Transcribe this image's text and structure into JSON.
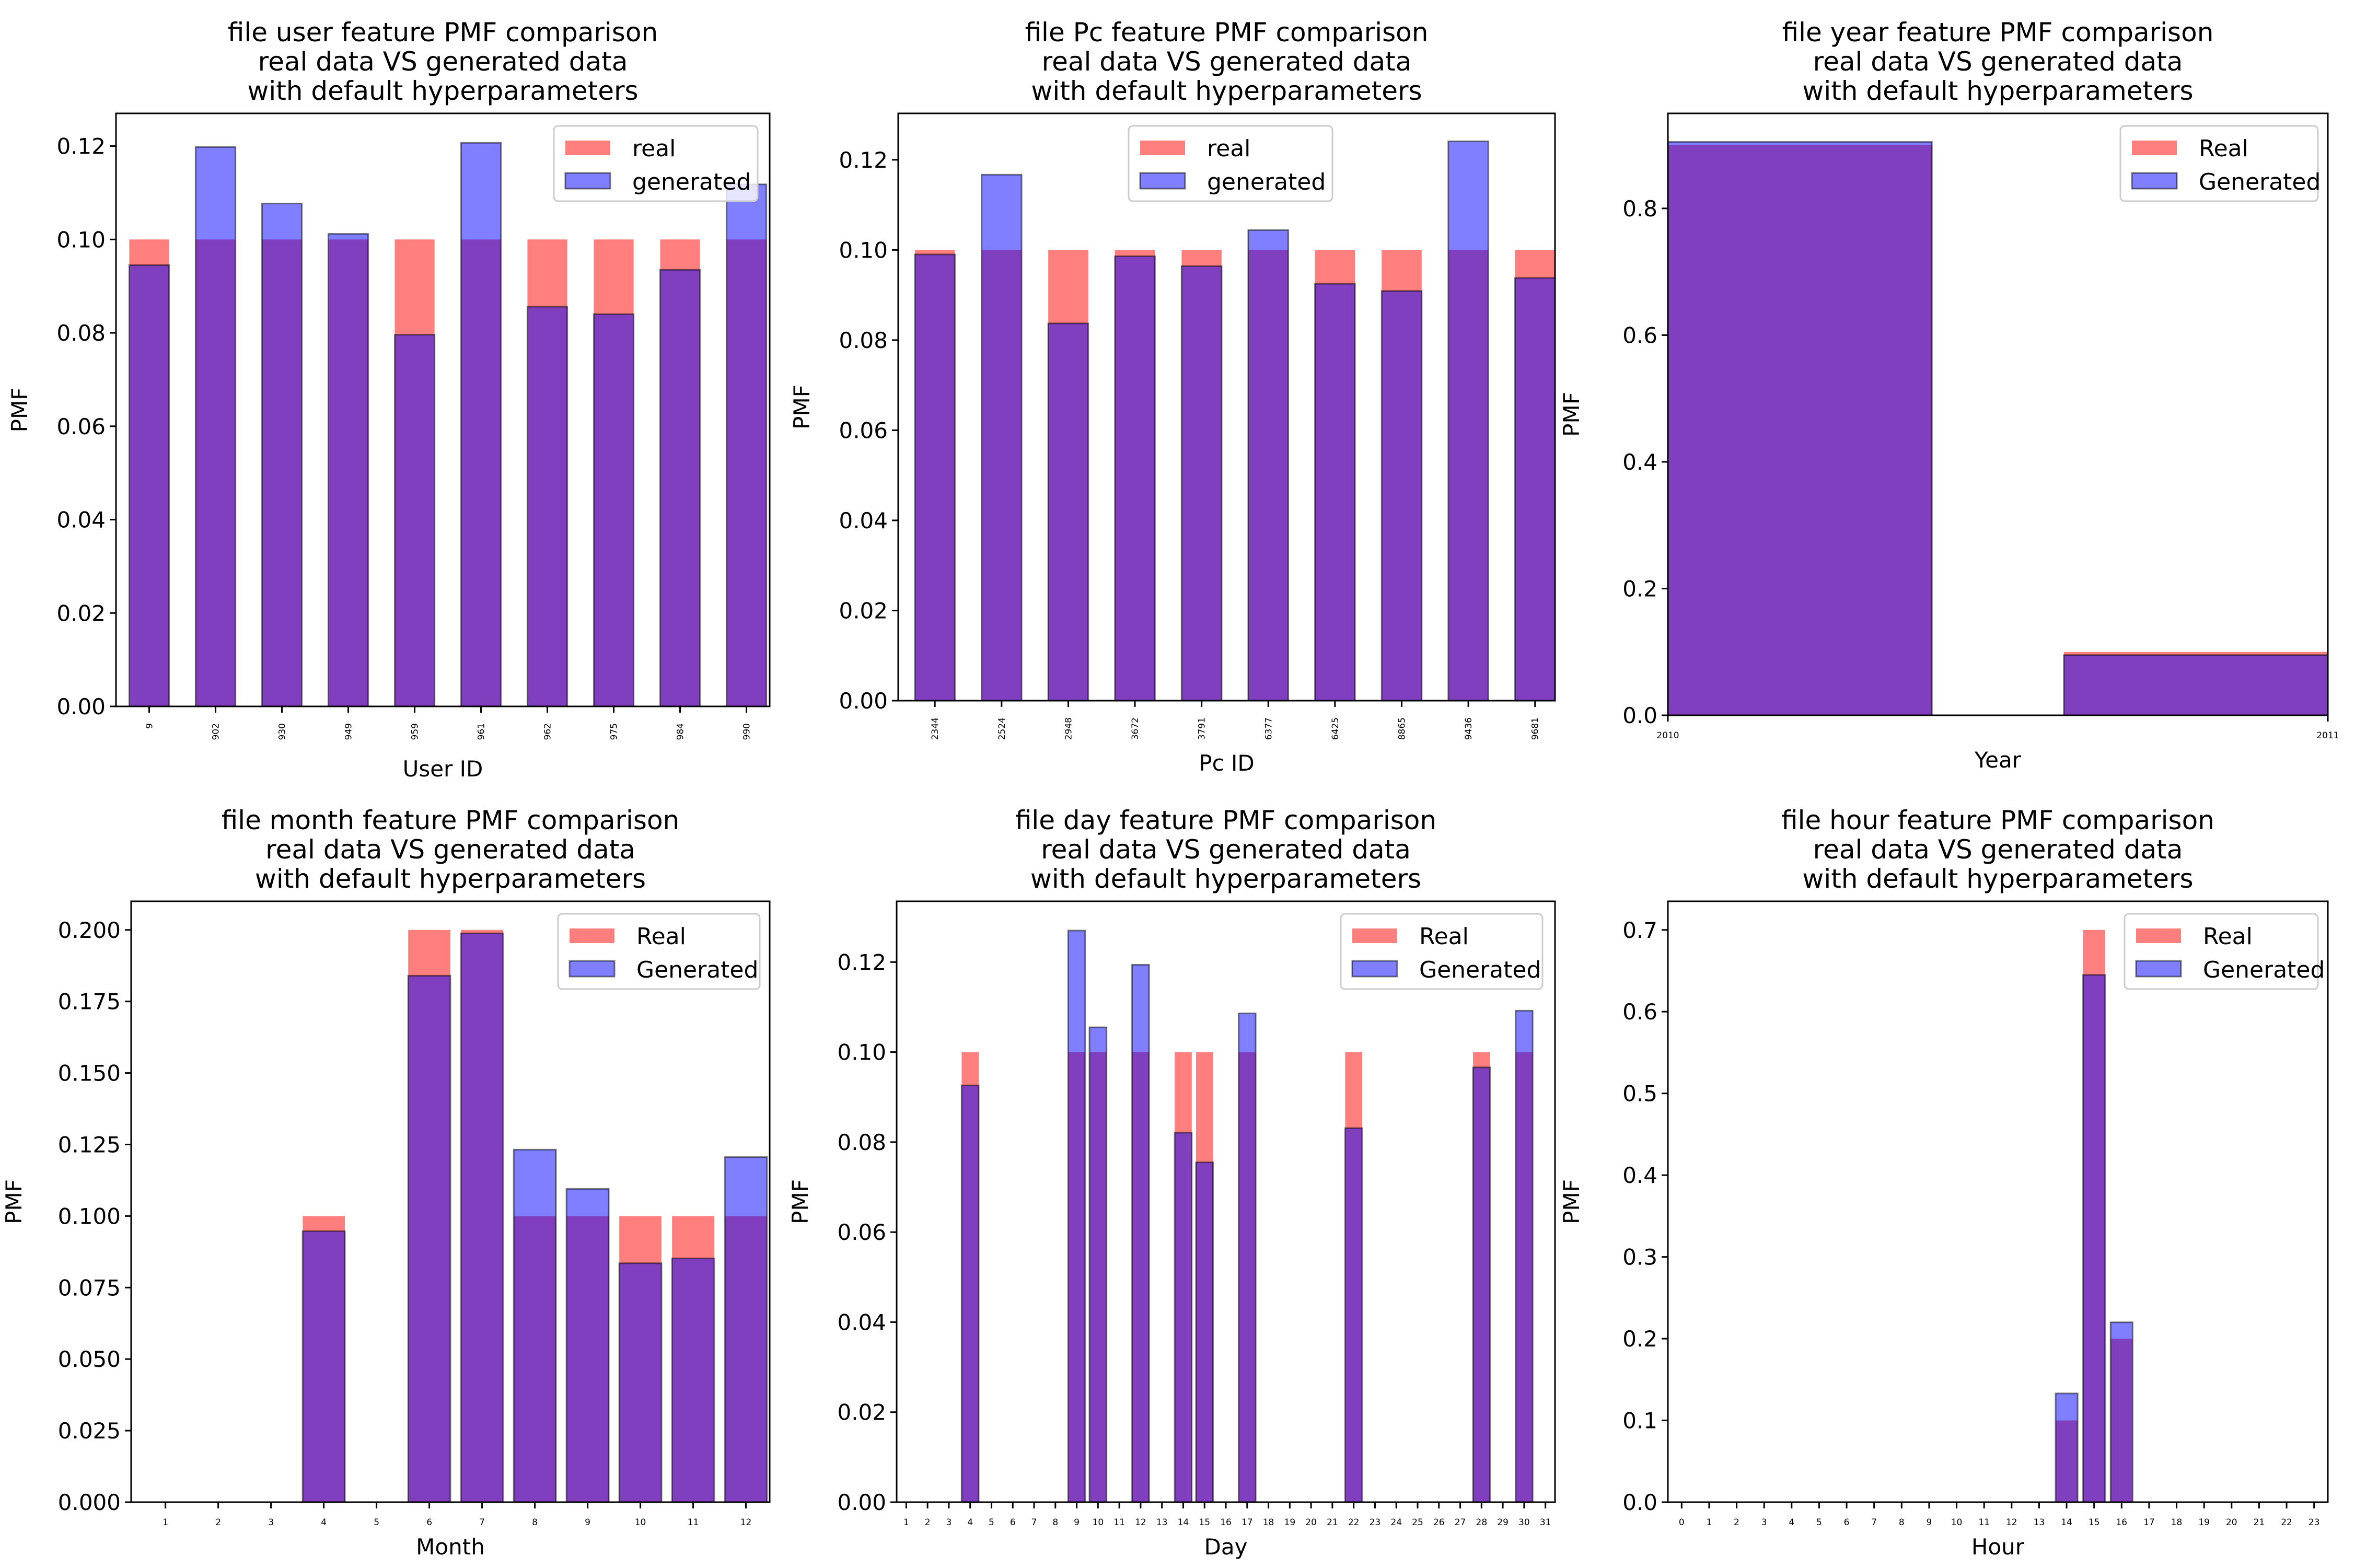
{
  "figure": {
    "background": "#ffffff",
    "colors": {
      "real": "#ff0000",
      "generated": "#0000ff",
      "overlap": "#803ebf",
      "alpha": 0.5
    }
  },
  "chart_data": [
    {
      "id": "user",
      "type": "bar",
      "title": [
        "file user feature PMF comparison",
        "real data VS generated data",
        "with default hyperparameters"
      ],
      "xlabel": "User ID",
      "ylabel": "PMF",
      "categories": [
        "9",
        "902",
        "930",
        "949",
        "959",
        "961",
        "962",
        "975",
        "984",
        "990"
      ],
      "xtick_rotation": "vertical",
      "ylim": [
        0,
        0.127
      ],
      "yticks": [
        0.0,
        0.02,
        0.04,
        0.06,
        0.08,
        0.1,
        0.12
      ],
      "ytick_labels": [
        "0.00",
        "0.02",
        "0.04",
        "0.06",
        "0.08",
        "0.10",
        "0.12"
      ],
      "legend": {
        "labels": [
          "real",
          "generated"
        ],
        "placement": "top-right"
      },
      "series": [
        {
          "name": "real",
          "values": [
            0.1,
            0.1,
            0.1,
            0.1,
            0.1,
            0.1,
            0.1,
            0.1,
            0.1,
            0.1
          ]
        },
        {
          "name": "generated",
          "values": [
            0.0945,
            0.1198,
            0.1077,
            0.1012,
            0.0796,
            0.1207,
            0.0856,
            0.084,
            0.0935,
            0.1118
          ]
        }
      ],
      "grid": false
    },
    {
      "id": "pc",
      "type": "bar",
      "title": [
        "file Pc feature PMF comparison",
        "real data VS generated data",
        "with default hyperparameters"
      ],
      "xlabel": "Pc ID",
      "ylabel": "PMF",
      "categories": [
        "2344",
        "2524",
        "2948",
        "3672",
        "3791",
        "6377",
        "6425",
        "8865",
        "9436",
        "9681"
      ],
      "xtick_rotation": "vertical",
      "ylim": [
        0,
        0.1303
      ],
      "yticks": [
        0.0,
        0.02,
        0.04,
        0.06,
        0.08,
        0.1,
        0.12
      ],
      "ytick_labels": [
        "0.00",
        "0.02",
        "0.04",
        "0.06",
        "0.08",
        "0.10",
        "0.12"
      ],
      "legend": {
        "labels": [
          "real",
          "generated"
        ],
        "placement": "top-center"
      },
      "series": [
        {
          "name": "real",
          "values": [
            0.1,
            0.1,
            0.1,
            0.1,
            0.1,
            0.1,
            0.1,
            0.1,
            0.1,
            0.1
          ]
        },
        {
          "name": "generated",
          "values": [
            0.099,
            0.1167,
            0.0837,
            0.0986,
            0.0964,
            0.1044,
            0.0925,
            0.0909,
            0.1241,
            0.0938
          ]
        }
      ],
      "grid": false
    },
    {
      "id": "year",
      "type": "bar",
      "title": [
        "file year feature PMF comparison",
        "real data VS generated data",
        "with default hyperparameters"
      ],
      "xlabel": "Year",
      "ylabel": "PMF",
      "categories": [
        "2010",
        "2011"
      ],
      "xtick_rotation": "horizontal",
      "ylim": [
        0,
        0.95
      ],
      "yticks": [
        0.0,
        0.2,
        0.4,
        0.6,
        0.8
      ],
      "ytick_labels": [
        "0.0",
        "0.2",
        "0.4",
        "0.6",
        "0.8"
      ],
      "legend": {
        "labels": [
          "Real",
          "Generated"
        ],
        "placement": "top-right"
      },
      "series": [
        {
          "name": "Real",
          "values": [
            0.9,
            0.1
          ]
        },
        {
          "name": "Generated",
          "values": [
            0.905,
            0.095
          ]
        }
      ],
      "grid": false
    },
    {
      "id": "month",
      "type": "bar",
      "title": [
        "file month feature PMF comparison",
        "real data VS generated data",
        "with default hyperparameters"
      ],
      "xlabel": "Month",
      "ylabel": "PMF",
      "categories": [
        "1",
        "2",
        "3",
        "4",
        "5",
        "6",
        "7",
        "8",
        "9",
        "10",
        "11",
        "12"
      ],
      "xtick_rotation": "horizontal",
      "ylim": [
        0,
        0.21
      ],
      "yticks": [
        0.0,
        0.025,
        0.05,
        0.075,
        0.1,
        0.125,
        0.15,
        0.175,
        0.2
      ],
      "ytick_labels": [
        "0.000",
        "0.025",
        "0.050",
        "0.075",
        "0.100",
        "0.125",
        "0.150",
        "0.175",
        "0.200"
      ],
      "legend": {
        "labels": [
          "Real",
          "Generated"
        ],
        "placement": "top-right"
      },
      "series": [
        {
          "name": "Real",
          "values": [
            0,
            0,
            0,
            0.1,
            0,
            0.2,
            0.2,
            0.1,
            0.1,
            0.1,
            0.1,
            0.1
          ]
        },
        {
          "name": "Generated",
          "values": [
            0,
            0,
            0,
            0.0947,
            0,
            0.184,
            0.1988,
            0.1232,
            0.1095,
            0.0835,
            0.0852,
            0.1206
          ]
        }
      ],
      "grid": false
    },
    {
      "id": "day",
      "type": "bar",
      "title": [
        "file day feature PMF comparison",
        "real data VS generated data",
        "with default hyperparameters"
      ],
      "xlabel": "Day",
      "ylabel": "PMF",
      "categories": [
        "1",
        "2",
        "3",
        "4",
        "5",
        "6",
        "7",
        "8",
        "9",
        "10",
        "11",
        "12",
        "13",
        "14",
        "15",
        "16",
        "17",
        "18",
        "19",
        "20",
        "21",
        "22",
        "23",
        "24",
        "25",
        "26",
        "27",
        "28",
        "29",
        "30",
        "31"
      ],
      "xtick_rotation": "horizontal",
      "ylim": [
        0,
        0.1335
      ],
      "yticks": [
        0.0,
        0.02,
        0.04,
        0.06,
        0.08,
        0.1,
        0.12
      ],
      "ytick_labels": [
        "0.00",
        "0.02",
        "0.04",
        "0.06",
        "0.08",
        "0.10",
        "0.12"
      ],
      "legend": {
        "labels": [
          "Real",
          "Generated"
        ],
        "placement": "top-right"
      },
      "series": [
        {
          "name": "Real",
          "values": [
            0,
            0,
            0,
            0.1,
            0,
            0,
            0,
            0,
            0.1,
            0.1,
            0,
            0.1,
            0,
            0.1,
            0.1,
            0,
            0.1,
            0,
            0,
            0,
            0,
            0.1,
            0,
            0,
            0,
            0,
            0,
            0.1,
            0,
            0.1,
            0
          ]
        },
        {
          "name": "Generated",
          "values": [
            0,
            0,
            0,
            0.0926,
            0,
            0,
            0,
            0,
            0.127,
            0.1055,
            0,
            0.1194,
            0,
            0.0821,
            0.0755,
            0,
            0.1086,
            0,
            0,
            0,
            0,
            0.0831,
            0,
            0,
            0,
            0,
            0,
            0.0966,
            0,
            0.1092,
            0
          ]
        }
      ],
      "grid": false
    },
    {
      "id": "hour",
      "type": "bar",
      "title": [
        "file hour feature PMF comparison",
        "real data VS generated data",
        "with default hyperparameters"
      ],
      "xlabel": "Hour",
      "ylabel": "PMF",
      "categories": [
        "0",
        "1",
        "2",
        "3",
        "4",
        "5",
        "6",
        "7",
        "8",
        "9",
        "10",
        "11",
        "12",
        "13",
        "14",
        "15",
        "16",
        "17",
        "18",
        "19",
        "20",
        "21",
        "22",
        "23"
      ],
      "xtick_rotation": "horizontal",
      "ylim": [
        0,
        0.735
      ],
      "yticks": [
        0.0,
        0.1,
        0.2,
        0.3,
        0.4,
        0.5,
        0.6,
        0.7
      ],
      "ytick_labels": [
        "0.0",
        "0.1",
        "0.2",
        "0.3",
        "0.4",
        "0.5",
        "0.6",
        "0.7"
      ],
      "legend": {
        "labels": [
          "Real",
          "Generated"
        ],
        "placement": "top-right"
      },
      "series": [
        {
          "name": "Real",
          "values": [
            0,
            0,
            0,
            0,
            0,
            0,
            0,
            0,
            0,
            0,
            0,
            0,
            0,
            0,
            0.1,
            0.7,
            0.2,
            0,
            0,
            0,
            0,
            0,
            0,
            0
          ]
        },
        {
          "name": "Generated",
          "values": [
            0,
            0,
            0,
            0,
            0,
            0,
            0,
            0,
            0,
            0,
            0,
            0,
            0,
            0,
            0.133,
            0.645,
            0.22,
            0,
            0,
            0,
            0,
            0,
            0,
            0
          ]
        }
      ],
      "grid": false
    }
  ]
}
